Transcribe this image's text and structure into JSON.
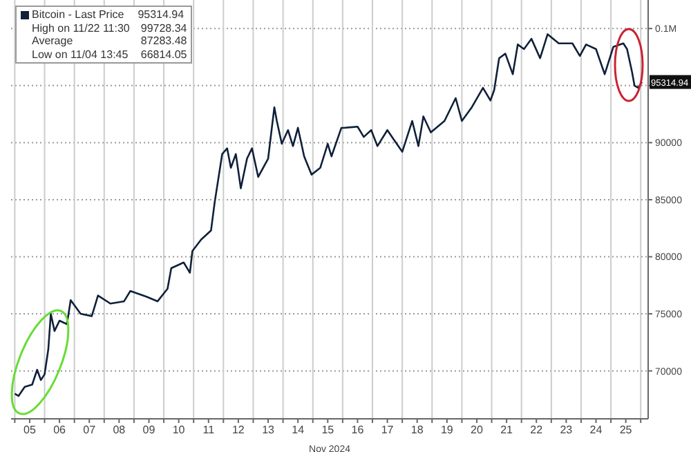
{
  "chart_data": {
    "type": "line",
    "xlabel": "Nov 2024",
    "x": [
      "2024-11-05T00:00",
      "2024-11-05T03:00",
      "2024-11-05T08:00",
      "2024-11-05T14:00",
      "2024-11-05T18:00",
      "2024-11-05T21:00",
      "2024-11-06T00:00",
      "2024-11-06T03:00",
      "2024-11-06T05:00",
      "2024-11-06T08:00",
      "2024-11-06T12:00",
      "2024-11-06T18:00",
      "2024-11-06T21:00",
      "2024-11-07T05:00",
      "2024-11-07T14:00",
      "2024-11-07T19:00",
      "2024-11-08T05:00",
      "2024-11-08T16:00",
      "2024-11-08T21:00",
      "2024-11-09T10:00",
      "2024-11-09T19:00",
      "2024-11-10T03:00",
      "2024-11-10T06:00",
      "2024-11-10T16:00",
      "2024-11-10T21:00",
      "2024-11-10T23:00",
      "2024-11-11T06:00",
      "2024-11-11T14:00",
      "2024-11-11T17:00",
      "2024-11-11T23:00",
      "2024-11-12T03:00",
      "2024-11-12T06:00",
      "2024-11-12T10:00",
      "2024-11-12T14:00",
      "2024-11-12T19:00",
      "2024-11-12T23:00",
      "2024-11-13T04:00",
      "2024-11-13T12:00",
      "2024-11-13T17:00",
      "2024-11-13T19:00",
      "2024-11-13T23:00",
      "2024-11-14T04:00",
      "2024-11-14T08:00",
      "2024-11-14T12:00",
      "2024-11-14T17:00",
      "2024-11-14T23:00",
      "2024-11-15T06:00",
      "2024-11-15T12:00",
      "2024-11-15T15:00",
      "2024-11-15T23:00",
      "2024-11-16T01:00",
      "2024-11-16T12:00",
      "2024-11-16T17:00",
      "2024-11-16T23:00",
      "2024-11-17T04:00",
      "2024-11-17T12:00",
      "2024-11-17T17:00",
      "2024-11-18T00:00",
      "2024-11-18T08:00",
      "2024-11-18T13:00",
      "2024-11-18T17:00",
      "2024-11-18T23:00",
      "2024-11-19T10:00",
      "2024-11-19T19:00",
      "2024-11-20T00:00",
      "2024-11-20T08:00",
      "2024-11-20T17:00",
      "2024-11-20T23:00",
      "2024-11-21T02:00",
      "2024-11-21T06:00",
      "2024-11-21T11:00",
      "2024-11-21T17:00",
      "2024-11-21T21:00",
      "2024-11-22T02:00",
      "2024-11-22T08:00",
      "2024-11-22T15:00",
      "2024-11-22T21:00",
      "2024-11-23T06:00",
      "2024-11-23T17:00",
      "2024-11-23T23:00",
      "2024-11-24T04:00",
      "2024-11-24T12:00",
      "2024-11-24T19:00",
      "2024-11-25T02:00",
      "2024-11-25T10:00",
      "2024-11-25T13:00",
      "2024-11-25T17:00",
      "2024-11-25T19:00",
      "2024-11-25T22:00",
      "2024-11-26T01:00"
    ],
    "series": [
      {
        "name": "Bitcoin - Last Price",
        "color": "#10203a",
        "values": [
          68000,
          67800,
          68600,
          68800,
          70100,
          69200,
          69700,
          71900,
          75000,
          73500,
          74400,
          74100,
          76200,
          75000,
          74800,
          76600,
          75900,
          76100,
          77000,
          76500,
          76100,
          77200,
          79000,
          79500,
          78600,
          80500,
          81500,
          82300,
          84800,
          89000,
          89500,
          87800,
          89000,
          86000,
          88600,
          89500,
          87000,
          88600,
          93100,
          91900,
          89900,
          91100,
          89700,
          91300,
          88800,
          87200,
          87800,
          89900,
          88800,
          91300,
          91300,
          91400,
          90500,
          91100,
          89700,
          91100,
          90300,
          89200,
          91900,
          89700,
          92300,
          90900,
          91900,
          93900,
          91900,
          93100,
          94800,
          93700,
          94600,
          97400,
          97800,
          96000,
          98600,
          98200,
          99100,
          97400,
          99500,
          98700,
          98700,
          97600,
          98600,
          98200,
          96000,
          98400,
          98700,
          98200,
          96200,
          95000,
          94800,
          95314.94
        ]
      }
    ],
    "xlim": [
      "2024-11-04T21:00",
      "2024-11-26T06:00"
    ],
    "xticks": [
      {
        "value": "2024-11-05T00:00",
        "label": null
      },
      {
        "value": "2024-11-05T12:00",
        "label": "05"
      },
      {
        "value": "2024-11-06T00:00",
        "label": null
      },
      {
        "value": "2024-11-06T12:00",
        "label": "06"
      },
      {
        "value": "2024-11-07T00:00",
        "label": null
      },
      {
        "value": "2024-11-07T12:00",
        "label": "07"
      },
      {
        "value": "2024-11-08T00:00",
        "label": null
      },
      {
        "value": "2024-11-08T12:00",
        "label": "08"
      },
      {
        "value": "2024-11-09T00:00",
        "label": null
      },
      {
        "value": "2024-11-09T12:00",
        "label": "09"
      },
      {
        "value": "2024-11-10T00:00",
        "label": null
      },
      {
        "value": "2024-11-10T12:00",
        "label": "10"
      },
      {
        "value": "2024-11-11T00:00",
        "label": null
      },
      {
        "value": "2024-11-11T12:00",
        "label": "11"
      },
      {
        "value": "2024-11-12T00:00",
        "label": null
      },
      {
        "value": "2024-11-12T12:00",
        "label": "12"
      },
      {
        "value": "2024-11-13T00:00",
        "label": null
      },
      {
        "value": "2024-11-13T12:00",
        "label": "13"
      },
      {
        "value": "2024-11-14T00:00",
        "label": null
      },
      {
        "value": "2024-11-14T12:00",
        "label": "14"
      },
      {
        "value": "2024-11-15T00:00",
        "label": null
      },
      {
        "value": "2024-11-15T12:00",
        "label": "15"
      },
      {
        "value": "2024-11-16T00:00",
        "label": null
      },
      {
        "value": "2024-11-16T12:00",
        "label": "16"
      },
      {
        "value": "2024-11-17T00:00",
        "label": null
      },
      {
        "value": "2024-11-17T12:00",
        "label": "17"
      },
      {
        "value": "2024-11-18T00:00",
        "label": null
      },
      {
        "value": "2024-11-18T12:00",
        "label": "18"
      },
      {
        "value": "2024-11-19T00:00",
        "label": null
      },
      {
        "value": "2024-11-19T12:00",
        "label": "19"
      },
      {
        "value": "2024-11-20T00:00",
        "label": null
      },
      {
        "value": "2024-11-20T12:00",
        "label": "20"
      },
      {
        "value": "2024-11-21T00:00",
        "label": null
      },
      {
        "value": "2024-11-21T12:00",
        "label": "21"
      },
      {
        "value": "2024-11-22T00:00",
        "label": null
      },
      {
        "value": "2024-11-22T12:00",
        "label": "22"
      },
      {
        "value": "2024-11-23T00:00",
        "label": null
      },
      {
        "value": "2024-11-23T12:00",
        "label": "23"
      },
      {
        "value": "2024-11-24T00:00",
        "label": null
      },
      {
        "value": "2024-11-24T12:00",
        "label": "24"
      },
      {
        "value": "2024-11-25T00:00",
        "label": null
      },
      {
        "value": "2024-11-25T12:00",
        "label": "25"
      },
      {
        "value": "2024-11-26T00:00",
        "label": null
      }
    ],
    "ylim": [
      65800,
      102500
    ],
    "yticks": [
      70000,
      75000,
      80000,
      85000,
      90000,
      {
        "value": 95000,
        "label": null
      },
      {
        "value": 100000,
        "label": "0.1M"
      }
    ],
    "grid": true,
    "legend": "top left",
    "annotations": [
      {
        "text": "95314.94",
        "x": "2024-11-26T01:00",
        "y": 95314.94
      },
      "High on 11/22 11:30 99728.34",
      "Average 87283.48",
      "Low on 11/04 13:45 66814.05"
    ]
  }
}
